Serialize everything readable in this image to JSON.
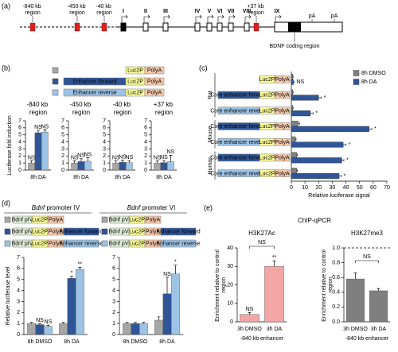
{
  "panel_labels": [
    "(a)",
    "(b)",
    "(c)",
    "(d)",
    "(e)"
  ],
  "gene_map": {
    "regions": [
      "-840 kb region",
      "-450 kb region",
      "-40 kb region",
      "+37 kb region"
    ],
    "exons": [
      "I",
      "II",
      "III",
      "IV",
      "V",
      "VI",
      "VII",
      "VIII",
      "IX"
    ],
    "polya": [
      "pA",
      "pA"
    ],
    "coding_label": "BDNF coding region"
  },
  "constructs": {
    "luc": "Luc2P",
    "polya": "PolyA",
    "forward": "Enhancer forward",
    "reverse": "Enhancer reverse",
    "piv": "Bdnf pIV",
    "pvi": "Bdnf pVI"
  },
  "chip_title": "ChIP-qPCR",
  "chart_data": [
    {
      "type": "bar",
      "title": "-840 kb region",
      "y_label": "Luciferase fold induction",
      "categories": [
        "8h DA"
      ],
      "series": [
        {
          "color": "#a6a6a6",
          "values": [
            1
          ],
          "errors": [
            0.3
          ],
          "significance": [
            "NS"
          ]
        },
        {
          "color": "#2f5597",
          "values": [
            5.3
          ],
          "errors": [
            0.35
          ],
          "significance": [
            "NS"
          ]
        },
        {
          "color": "#9dc3e6",
          "values": [
            5.4
          ],
          "errors": [
            0.3
          ],
          "significance": [
            "NS"
          ]
        }
      ],
      "ylim": [
        0,
        7
      ],
      "yticks": [
        0,
        1,
        2,
        3,
        4,
        5,
        6,
        7
      ]
    },
    {
      "type": "bar",
      "title": "-450 kb region",
      "categories": [
        "8h DA"
      ],
      "series": [
        {
          "color": "#a6a6a6",
          "values": [
            1
          ],
          "errors": [
            0.3
          ],
          "significance": [
            "NS"
          ]
        },
        {
          "color": "#2f5597",
          "values": [
            1.2
          ],
          "errors": [
            0.4
          ],
          "significance": [
            "NS"
          ]
        },
        {
          "color": "#9dc3e6",
          "values": [
            1.25
          ],
          "errors": [
            0.5
          ],
          "significance": [
            "NS"
          ]
        }
      ],
      "ylim": [
        0,
        7
      ],
      "yticks": [
        0,
        1,
        2,
        3,
        4,
        5,
        6,
        7
      ]
    },
    {
      "type": "bar",
      "title": "-40 kb region",
      "categories": [
        "8h DA"
      ],
      "series": [
        {
          "color": "#a6a6a6",
          "values": [
            1
          ],
          "errors": [
            0.3
          ],
          "significance": [
            "NS"
          ]
        },
        {
          "color": "#2f5597",
          "values": [
            1.1
          ],
          "errors": [
            0.3
          ],
          "significance": [
            "NS"
          ]
        },
        {
          "color": "#9dc3e6",
          "values": [
            1.05
          ],
          "errors": [
            0.3
          ],
          "significance": [
            "NS"
          ]
        }
      ],
      "ylim": [
        0,
        7
      ],
      "yticks": [
        0,
        1,
        2,
        3,
        4,
        5,
        6,
        7
      ]
    },
    {
      "type": "bar",
      "title": "+37 kb region",
      "categories": [
        "8h DA"
      ],
      "series": [
        {
          "color": "#a6a6a6",
          "values": [
            1
          ],
          "errors": [
            0.3
          ],
          "significance": [
            "NS"
          ]
        },
        {
          "color": "#2f5597",
          "values": [
            1.05
          ],
          "errors": [
            0.3
          ],
          "significance": [
            "NS"
          ]
        },
        {
          "color": "#9dc3e6",
          "values": [
            1.2
          ],
          "errors": [
            0.9
          ],
          "significance": [
            "NS"
          ]
        }
      ],
      "ylim": [
        0,
        7
      ],
      "yticks": [
        0,
        1,
        2,
        3,
        4,
        5,
        6,
        7
      ]
    },
    {
      "type": "hbar",
      "x_label": "Relative luciferase signal",
      "categories": [
        null,
        "Core enhancer forward",
        "Core enhancer reverse",
        "Core enhancer forward",
        "Core enhancer reverse",
        "Core enhancer forward",
        "Core enhancer reverse"
      ],
      "groups": [
        "Rat",
        "Mouse",
        "Human"
      ],
      "series": [
        {
          "name": "8h DMSO",
          "color": "#808080",
          "values": [
            1,
            1,
            1,
            5,
            3,
            4,
            4
          ],
          "errors": [
            0.3,
            0.3,
            0.3,
            1,
            0.5,
            0.5,
            0.5
          ]
        },
        {
          "name": "8h DA",
          "color": "#2f5597",
          "values": [
            1.5,
            20,
            14,
            57,
            38,
            37,
            35
          ],
          "errors": [
            0.5,
            2,
            2,
            2,
            2,
            1.5,
            1.5
          ],
          "significance": [
            "NS",
            "*",
            "*",
            "*",
            "*",
            "*",
            "*"
          ]
        }
      ],
      "xlim": [
        0,
        70
      ],
      "xticks": [
        0,
        10,
        20,
        30,
        40,
        50,
        60,
        70
      ]
    },
    {
      "type": "bar",
      "title": "Bdnf promoter IV",
      "y_label": "Relative luciferase level",
      "categories": [
        "8h DMSO",
        "8h DA"
      ],
      "series": [
        {
          "color": "#a6a6a6",
          "values": [
            1,
            1
          ],
          "errors": [
            0.1,
            0.1
          ],
          "significance": [
            null,
            null
          ]
        },
        {
          "color": "#2f5597",
          "values": [
            0.9,
            5.1
          ],
          "errors": [
            0.1,
            0.2
          ],
          "significance": [
            "NS",
            "*"
          ]
        },
        {
          "color": "#9dc3e6",
          "values": [
            0.75,
            5.9
          ],
          "errors": [
            0.1,
            0.2
          ],
          "significance": [
            "NS",
            "**"
          ]
        }
      ],
      "ylim": [
        0,
        7
      ],
      "yticks": [
        0,
        1,
        2,
        3,
        4,
        5,
        6,
        7
      ]
    },
    {
      "type": "bar",
      "title": "Bdnf promoter VI",
      "categories": [
        "8h DMSO",
        "8h DA"
      ],
      "series": [
        {
          "color": "#a6a6a6",
          "values": [
            1,
            1.3
          ],
          "errors": [
            0.1,
            0.3
          ],
          "significance": [
            null,
            null
          ]
        },
        {
          "color": "#2f5597",
          "values": [
            1,
            3.7
          ],
          "errors": [
            0.1,
            1.5
          ],
          "significance": [
            null,
            "NS"
          ]
        },
        {
          "color": "#9dc3e6",
          "values": [
            1,
            5.5
          ],
          "errors": [
            0.1,
            0.8
          ],
          "significance": [
            null,
            "*"
          ]
        }
      ],
      "ylim": [
        0,
        7
      ],
      "yticks": [
        0,
        1,
        2,
        3,
        4,
        5,
        6,
        7
      ]
    },
    {
      "type": "bar",
      "title": "H3K27Ac",
      "y_label": "Enrichment relative to control region",
      "x_label": "-840 kb enhancer",
      "categories": [
        "3h DMSO",
        "3h DA"
      ],
      "series": [
        {
          "color": "#f4a6a6",
          "values": [
            4,
            30
          ],
          "errors": [
            1,
            3
          ],
          "significance": [
            "NS",
            "**"
          ]
        }
      ],
      "comparison": "NS",
      "ylim": [
        0,
        40
      ],
      "yticks": [
        0,
        10,
        20,
        30,
        40
      ]
    },
    {
      "type": "bar",
      "title": "H3K27me3",
      "y_label": "Enrichment relative to control region",
      "x_label": "-840 kb enhancer",
      "categories": [
        "3h DMSO",
        "3h DA"
      ],
      "series": [
        {
          "color": "#7f7f7f",
          "values": [
            0.58,
            0.42
          ],
          "errors": [
            0.08,
            0.03
          ]
        }
      ],
      "comparison": "NS",
      "reference_line": 1,
      "ylim": [
        0,
        1
      ],
      "yticks": [
        {
          "value": 0,
          "label": "0.0"
        },
        0.2,
        0.4,
        0.6,
        0.8,
        {
          "value": 1,
          "label": "1.0"
        }
      ]
    }
  ]
}
